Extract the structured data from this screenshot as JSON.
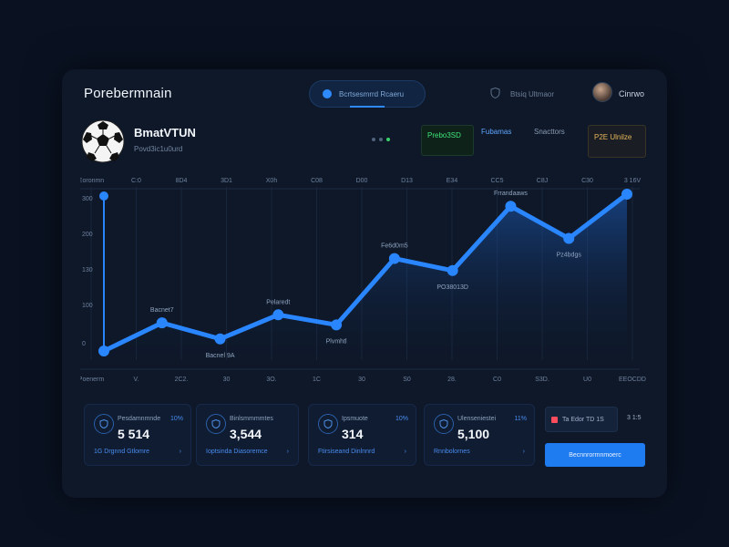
{
  "app": {
    "title": "Porebermnain"
  },
  "header": {
    "search_pill": "Bcrtsesmrrd Rcaeru",
    "nav_text": "Btsiq Ultmaor",
    "user_name": "Cinrwo"
  },
  "team": {
    "name": "BmatVTUN",
    "subtitle": "Povd3ic1u0urd"
  },
  "chips": {
    "green": "Prebo3SD",
    "blue": "Fubamas",
    "grey": "Snacttors",
    "gold": "P2E Ulnilze"
  },
  "colors": {
    "accent": "#1f7cf0",
    "line": "#2a86ff",
    "positive": "#3de47a",
    "gold": "#e6b55a"
  },
  "chart_data": {
    "type": "line",
    "x_top": [
      "Eoronmn",
      "C:0",
      "8D4",
      "3D1",
      "X0h",
      "C08",
      "D00",
      "D13",
      "E34",
      "CC5",
      "C8J",
      "C30",
      "3 16V"
    ],
    "x_bottom": [
      "Poenerm",
      "V.",
      "2C2.",
      "30",
      "3O.",
      "1C",
      "30",
      "S0",
      "28.",
      "C0",
      "S3D.",
      "U0",
      "EEOCDD"
    ],
    "y_ticks": [
      "300",
      "200",
      "130",
      "100",
      "0"
    ],
    "ylim": [
      0,
      330
    ],
    "values": [
      0,
      70,
      30,
      90,
      65,
      230,
      200,
      360,
      280,
      390
    ],
    "point_labels": [
      "",
      "Bacnet7",
      "Bacnel 9A",
      "Pelaredt",
      "Plvmhtl",
      "Fe6d0m5",
      "PO38013D",
      "Frrandaaws",
      "Pz4bdgs",
      ""
    ]
  },
  "cards": [
    {
      "label": "Pesdamnmnde",
      "pct": "10%",
      "value": "5 514",
      "foot": "1G Drgnnd Gtlomre",
      "icon": "shield-icon"
    },
    {
      "label": "Binlsmmmmtes",
      "pct": "",
      "value": "3,544",
      "foot": "Ioptsinda Diasoremce",
      "icon": "fire-icon"
    },
    {
      "label": "Ipsmuote",
      "pct": "10%",
      "value": "314",
      "foot": "Ftirsiseand Dinlnnrd",
      "icon": "globe-icon"
    },
    {
      "label": "Ulenseniestei",
      "pct": "11%",
      "value": "5,100",
      "foot": "Rnnbolornes",
      "icon": "shield-icon"
    }
  ],
  "side": {
    "badge": "Ta Edor TD 1S",
    "time": "3 1:5",
    "cta": "Becnnrormnmoerc"
  }
}
